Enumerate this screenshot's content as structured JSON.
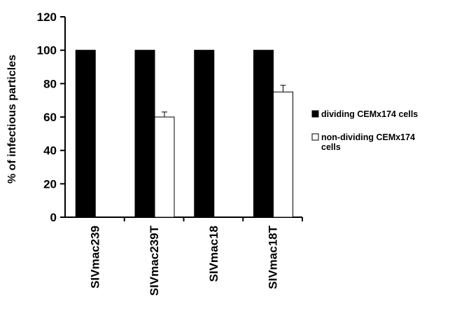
{
  "chart_data": {
    "type": "bar",
    "title": "",
    "xlabel": "",
    "ylabel": "% of infectious particles",
    "ylim": [
      0,
      120
    ],
    "yticks": [
      0,
      20,
      40,
      60,
      80,
      100,
      120
    ],
    "categories": [
      "SIVmac239",
      "SIVmac239T",
      "SIVmac18",
      "SIVmac18T"
    ],
    "series": [
      {
        "name": "dividing CEMx174 cells",
        "color": "#000000",
        "values": [
          100,
          100,
          100,
          100
        ],
        "errors": [
          null,
          null,
          null,
          null
        ]
      },
      {
        "name": "non-dividing CEMx174 cells",
        "color": "#ffffff",
        "values": [
          0,
          60,
          0,
          75
        ],
        "errors": [
          null,
          3,
          null,
          4
        ]
      }
    ],
    "grid": false,
    "legend_position": "right"
  }
}
